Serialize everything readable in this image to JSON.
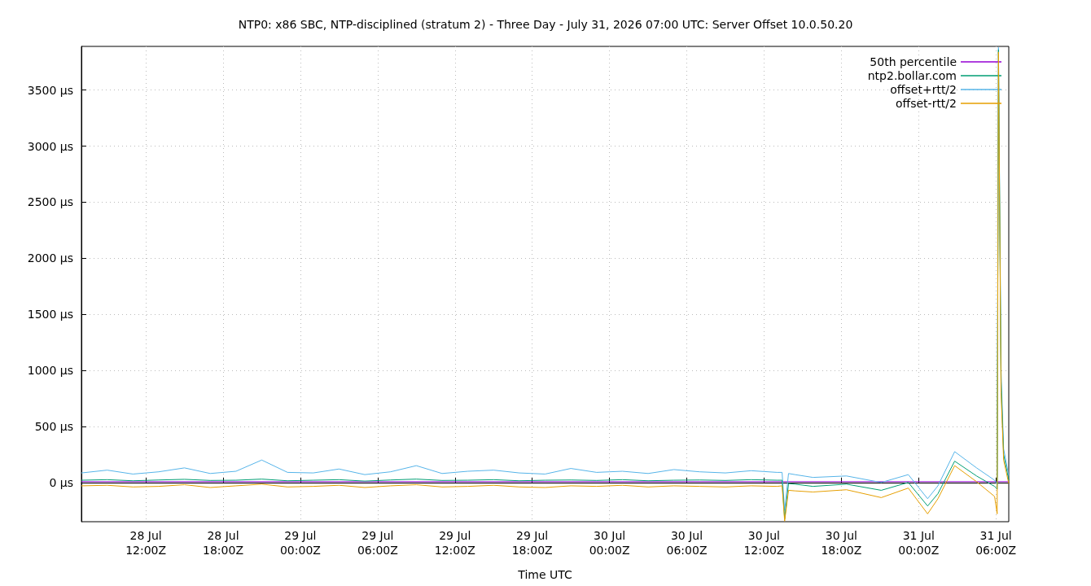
{
  "chart_data": {
    "type": "line",
    "title": "NTP0: x86 SBC, NTP-disciplined (stratum 2) - Three Day - July 31, 2026 07:00 UTC: Server Offset 10.0.50.20",
    "xlabel": "Time UTC",
    "x": [
      "2026-07-28T07:00",
      "2026-07-28T09:00",
      "2026-07-28T11:00",
      "2026-07-28T13:00",
      "2026-07-28T15:00",
      "2026-07-28T17:00",
      "2026-07-28T19:00",
      "2026-07-28T21:00",
      "2026-07-28T23:00",
      "2026-07-29T01:00",
      "2026-07-29T03:00",
      "2026-07-29T05:00",
      "2026-07-29T07:00",
      "2026-07-29T09:00",
      "2026-07-29T11:00",
      "2026-07-29T13:00",
      "2026-07-29T15:00",
      "2026-07-29T17:00",
      "2026-07-29T19:00",
      "2026-07-29T21:00",
      "2026-07-29T23:00",
      "2026-07-30T01:00",
      "2026-07-30T03:00",
      "2026-07-30T05:00",
      "2026-07-30T07:00",
      "2026-07-30T09:00",
      "2026-07-30T11:00",
      "2026-07-30T13:00",
      "2026-07-30T13:24",
      "2026-07-30T13:36",
      "2026-07-30T13:54",
      "2026-07-30T14:24",
      "2026-07-30T15:48",
      "2026-07-30T18:24",
      "2026-07-30T21:06",
      "2026-07-30T23:12",
      "2026-07-31T00:42",
      "2026-07-31T01:30",
      "2026-07-31T02:48",
      "2026-07-31T04:30",
      "2026-07-31T05:54",
      "2026-07-31T06:06",
      "2026-07-31T06:12",
      "2026-07-31T06:24",
      "2026-07-31T06:36",
      "2026-07-31T07:00"
    ],
    "series": [
      {
        "name": "50th percentile",
        "color": "#9400d3",
        "x": [
          "2026-07-28T07:00",
          "2026-07-31T07:00"
        ],
        "values": [
          7,
          7
        ]
      },
      {
        "name": "ntp2.bollar.com",
        "color": "#009e73",
        "values": [
          20,
          25,
          15,
          22,
          28,
          18,
          20,
          30,
          15,
          20,
          25,
          12,
          22,
          30,
          18,
          20,
          25,
          15,
          20,
          22,
          18,
          25,
          15,
          20,
          22,
          18,
          25,
          20,
          20,
          -326,
          -10,
          -15,
          -35,
          -15,
          -70,
          0,
          -210,
          -100,
          190,
          58,
          -35,
          -60,
          3860,
          900,
          250,
          20
        ]
      },
      {
        "name": "offset+rtt/2",
        "color": "#56b4e9",
        "values": [
          85,
          110,
          75,
          95,
          130,
          80,
          100,
          200,
          90,
          85,
          120,
          70,
          95,
          150,
          80,
          100,
          110,
          85,
          75,
          125,
          90,
          100,
          80,
          115,
          95,
          85,
          105,
          90,
          90,
          -250,
          80,
          70,
          45,
          58,
          0,
          70,
          -145,
          -30,
          275,
          130,
          20,
          -20,
          3880,
          1000,
          300,
          60
        ]
      },
      {
        "name": "offset-rtt/2",
        "color": "#e69f00",
        "values": [
          -30,
          -25,
          -40,
          -35,
          -20,
          -45,
          -30,
          -15,
          -40,
          -35,
          -25,
          -45,
          -30,
          -20,
          -40,
          -35,
          -25,
          -40,
          -45,
          -30,
          -35,
          -25,
          -40,
          -30,
          -35,
          -40,
          -30,
          -35,
          -30,
          -345,
          -70,
          -75,
          -85,
          -65,
          -135,
          -50,
          -280,
          -145,
          150,
          7,
          -125,
          -280,
          3840,
          800,
          200,
          -10
        ]
      }
    ],
    "xlim": [
      "2026-07-28T07:00",
      "2026-07-31T07:00"
    ],
    "xticks": [
      {
        "value": "2026-07-28T12:00",
        "label": "28 Jul\n12:00Z"
      },
      {
        "value": "2026-07-28T18:00",
        "label": "28 Jul\n18:00Z"
      },
      {
        "value": "2026-07-29T00:00",
        "label": "29 Jul\n00:00Z"
      },
      {
        "value": "2026-07-29T06:00",
        "label": "29 Jul\n06:00Z"
      },
      {
        "value": "2026-07-29T12:00",
        "label": "29 Jul\n12:00Z"
      },
      {
        "value": "2026-07-29T18:00",
        "label": "29 Jul\n18:00Z"
      },
      {
        "value": "2026-07-30T00:00",
        "label": "30 Jul\n00:00Z"
      },
      {
        "value": "2026-07-30T06:00",
        "label": "30 Jul\n06:00Z"
      },
      {
        "value": "2026-07-30T12:00",
        "label": "30 Jul\n12:00Z"
      },
      {
        "value": "2026-07-30T18:00",
        "label": "30 Jul\n18:00Z"
      },
      {
        "value": "2026-07-31T00:00",
        "label": "31 Jul\n00:00Z"
      },
      {
        "value": "2026-07-31T06:00",
        "label": "31 Jul\n06:00Z"
      }
    ],
    "ylim": [
      -350,
      3890
    ],
    "yticks": [
      {
        "value": 0,
        "label": "0 µs"
      },
      {
        "value": 500,
        "label": "500 µs"
      },
      {
        "value": 1000,
        "label": "1000 µs"
      },
      {
        "value": 1500,
        "label": "1500 µs"
      },
      {
        "value": 2000,
        "label": "2000 µs"
      },
      {
        "value": 2500,
        "label": "2500 µs"
      },
      {
        "value": 3000,
        "label": "3000 µs"
      },
      {
        "value": 3500,
        "label": "3500 µs"
      }
    ],
    "grid": true,
    "legend": "top right",
    "marker": "none",
    "line_style": "solid"
  }
}
